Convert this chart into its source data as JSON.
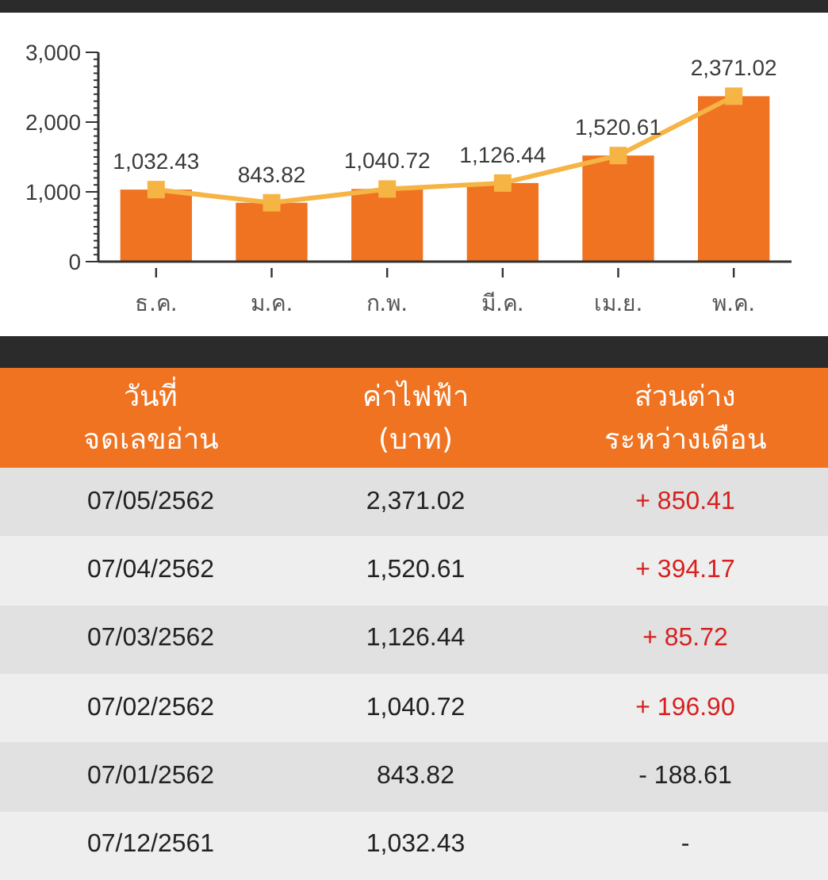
{
  "chart_data": [
    {
      "type": "bar",
      "categories": [
        "ธ.ค.",
        "ม.ค.",
        "ก.พ.",
        "มี.ค.",
        "เม.ย.",
        "พ.ค."
      ],
      "series": [
        {
          "type": "bar",
          "color": "#ef7321",
          "values": [
            1032.43,
            843.82,
            1040.72,
            1126.44,
            1520.61,
            2371.02
          ]
        },
        {
          "type": "line",
          "color": "#f6b445",
          "values": [
            1032.43,
            843.82,
            1040.72,
            1126.44,
            1520.61,
            2371.02
          ],
          "value_labels": [
            "1,032.43",
            "843.82",
            "1,040.72",
            "1,126.44",
            "1,520.61",
            "2,371.02"
          ]
        }
      ],
      "marker": "square",
      "ylim": [
        0,
        3000
      ],
      "yticks": [
        0,
        {
          "value": 100,
          "label": null
        },
        {
          "value": 200,
          "label": null
        },
        {
          "value": 300,
          "label": null
        },
        {
          "value": 400,
          "label": null
        },
        {
          "value": 500,
          "label": null
        },
        {
          "value": 600,
          "label": null
        },
        {
          "value": 700,
          "label": null
        },
        {
          "value": 800,
          "label": null
        },
        {
          "value": 900,
          "label": null
        },
        {
          "value": 1000,
          "label": "1,000"
        },
        {
          "value": 1100,
          "label": null
        },
        {
          "value": 1200,
          "label": null
        },
        {
          "value": 1300,
          "label": null
        },
        {
          "value": 1400,
          "label": null
        },
        {
          "value": 1500,
          "label": null
        },
        {
          "value": 1600,
          "label": null
        },
        {
          "value": 1700,
          "label": null
        },
        {
          "value": 1800,
          "label": null
        },
        {
          "value": 1900,
          "label": null
        },
        {
          "value": 2000,
          "label": "2,000"
        },
        {
          "value": 2100,
          "label": null
        },
        {
          "value": 2200,
          "label": null
        },
        {
          "value": 2300,
          "label": null
        },
        {
          "value": 2400,
          "label": null
        },
        {
          "value": 2500,
          "label": null
        },
        {
          "value": 2600,
          "label": null
        },
        {
          "value": 2700,
          "label": null
        },
        {
          "value": 2800,
          "label": null
        },
        {
          "value": 2900,
          "label": null
        },
        {
          "value": 3000,
          "label": "3,000"
        }
      ]
    },
    {
      "type": "other",
      "annotations": [
        "วันที่\nจดเลขอ่าน",
        "ค่าไฟฟ้า\n(บาท)",
        "ส่วนต่าง\nระหว่างเดือน",
        "07/05/2562",
        "2,371.02",
        "+ 850.41",
        "07/04/2562",
        "1,520.61",
        "+ 394.17",
        "07/03/2562",
        "1,126.44",
        "+ 85.72",
        "07/02/2562",
        "1,040.72",
        "+ 196.90",
        "07/01/2562",
        "843.82",
        "- 188.61",
        "07/12/2561",
        "1,032.43",
        "-"
      ]
    }
  ]
}
